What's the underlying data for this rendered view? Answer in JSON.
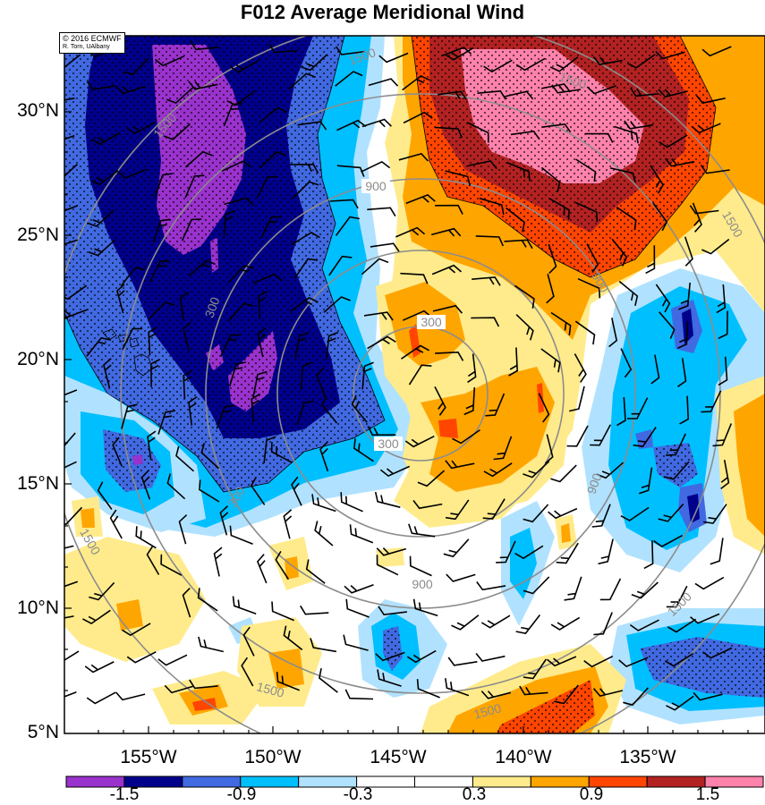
{
  "title": "F012 Average Meridional Wind",
  "credit": {
    "line1": "© 2016 ECMWF",
    "line2": "R. Torn, UAlbany"
  },
  "latitude_labels": [
    "30°N",
    "25°N",
    "20°N",
    "15°N",
    "10°N",
    "5°N"
  ],
  "longitude_labels": [
    "155°W",
    "150°W",
    "145°W",
    "140°W",
    "135°W"
  ],
  "colorbar": {
    "tick_labels": [
      "-1.5",
      "-0.9",
      "-0.3",
      "0.3",
      "0.9",
      "1.5"
    ],
    "colors": [
      "#9a32cd",
      "#00008b",
      "#4169e1",
      "#00bfff",
      "#b0e2ff",
      "#ffffff",
      "#ffffff",
      "#ffeb8b",
      "#ffa500",
      "#ff4500",
      "#b22222",
      "#ff82ab"
    ]
  },
  "contour_labels": {
    "inner": "300",
    "middle": "900",
    "outer": "1500"
  },
  "palette": {
    "purple": "#9a32cd",
    "navy": "#00008b",
    "royal": "#4169e1",
    "sky": "#00bfff",
    "pale_blue": "#b0e2ff",
    "pale_yellow": "#ffeb8b",
    "orange": "#ffa500",
    "red_orange": "#ff4500",
    "firebrick": "#b22222",
    "pink": "#ff82ab",
    "contour_gray": "#8c8c8c"
  }
}
